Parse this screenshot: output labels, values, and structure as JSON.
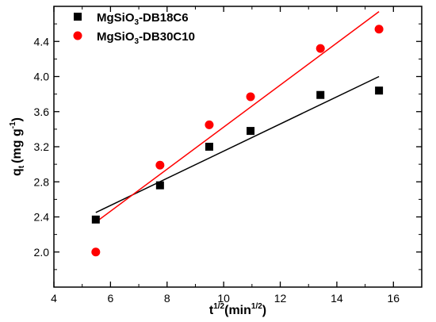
{
  "chart_data": {
    "type": "scatter",
    "xlabel": {
      "base": "t",
      "sup": "1/2",
      "unit_open": "(min",
      "unit_sup": "1/2",
      "unit_close": ")"
    },
    "ylabel": {
      "base": "q",
      "sub": "t",
      "unit": "(mg g",
      "unit_sup": "-1",
      "unit_close": ")"
    },
    "xlim": [
      4,
      17
    ],
    "ylim": [
      1.6,
      4.8
    ],
    "xticks": [
      4,
      6,
      8,
      10,
      12,
      14,
      16
    ],
    "yticks": [
      2.0,
      2.4,
      2.8,
      3.2,
      3.6,
      4.0,
      4.4
    ],
    "xtick_labels": [
      "4",
      "6",
      "8",
      "10",
      "12",
      "14",
      "16"
    ],
    "ytick_labels": [
      "2.0",
      "2.4",
      "2.8",
      "3.2",
      "3.6",
      "4.0",
      "4.4"
    ],
    "legend_position": "top-left",
    "series": [
      {
        "name": {
          "pre": "MgSiO",
          "sub": "3",
          "post": "-DB18C6"
        },
        "marker": "square",
        "color": "#000000",
        "line_color": "#000000",
        "x": [
          5.48,
          7.75,
          9.49,
          10.95,
          13.42,
          15.49
        ],
        "y": [
          2.37,
          2.76,
          3.2,
          3.38,
          3.79,
          3.84
        ],
        "fit": {
          "x": [
            5.48,
            15.49
          ],
          "y": [
            2.45,
            4.0
          ]
        }
      },
      {
        "name": {
          "pre": "MgSiO",
          "sub": "3",
          "post": "-DB30C10"
        },
        "marker": "circle",
        "color": "#ff0000",
        "line_color": "#ff0000",
        "x": [
          5.48,
          7.75,
          9.49,
          10.95,
          13.42,
          15.49
        ],
        "y": [
          2.0,
          2.99,
          3.45,
          3.77,
          4.32,
          4.54
        ],
        "fit": {
          "x": [
            5.48,
            15.49
          ],
          "y": [
            2.34,
            4.74
          ]
        }
      }
    ]
  }
}
